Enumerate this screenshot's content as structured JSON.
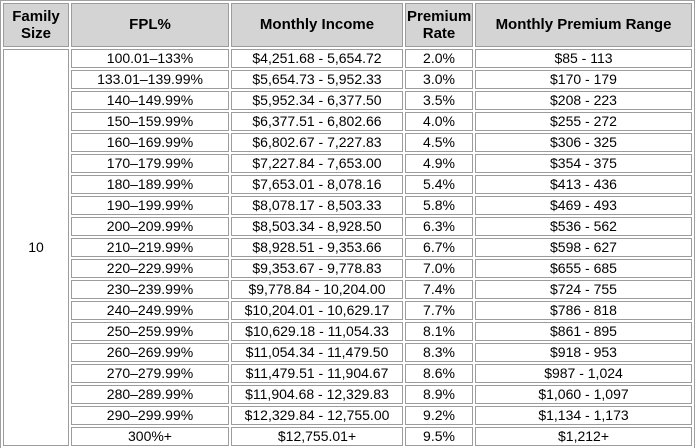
{
  "table": {
    "family_size": "10",
    "columns": {
      "family_size": "Family Size",
      "fpl": "FPL%",
      "income": "Monthly Income",
      "rate": "Premium Rate",
      "premium_range": "Monthly Premium Range"
    },
    "rows": [
      {
        "fpl": "100.01–133%",
        "income": "$4,251.68 - 5,654.72",
        "rate": "2.0%",
        "premium": "$85 - 113"
      },
      {
        "fpl": "133.01–139.99%",
        "income": "$5,654.73 - 5,952.33",
        "rate": "3.0%",
        "premium": "$170 - 179"
      },
      {
        "fpl": "140–149.99%",
        "income": "$5,952.34 - 6,377.50",
        "rate": "3.5%",
        "premium": "$208 - 223"
      },
      {
        "fpl": "150–159.99%",
        "income": "$6,377.51 - 6,802.66",
        "rate": "4.0%",
        "premium": "$255 - 272"
      },
      {
        "fpl": "160–169.99%",
        "income": "$6,802.67 - 7,227.83",
        "rate": "4.5%",
        "premium": "$306 - 325"
      },
      {
        "fpl": "170–179.99%",
        "income": "$7,227.84 - 7,653.00",
        "rate": "4.9%",
        "premium": "$354 - 375"
      },
      {
        "fpl": "180–189.99%",
        "income": "$7,653.01 - 8,078.16",
        "rate": "5.4%",
        "premium": "$413 - 436"
      },
      {
        "fpl": "190–199.99%",
        "income": "$8,078.17 - 8,503.33",
        "rate": "5.8%",
        "premium": "$469 - 493"
      },
      {
        "fpl": "200–209.99%",
        "income": "$8,503.34 - 8,928.50",
        "rate": "6.3%",
        "premium": "$536 - 562"
      },
      {
        "fpl": "210–219.99%",
        "income": "$8,928.51 - 9,353.66",
        "rate": "6.7%",
        "premium": "$598 - 627"
      },
      {
        "fpl": "220–229.99%",
        "income": "$9,353.67 - 9,778.83",
        "rate": "7.0%",
        "premium": "$655 - 685"
      },
      {
        "fpl": "230–239.99%",
        "income": "$9,778.84 - 10,204.00",
        "rate": "7.4%",
        "premium": "$724 - 755"
      },
      {
        "fpl": "240–249.99%",
        "income": "$10,204.01 - 10,629.17",
        "rate": "7.7%",
        "premium": "$786 - 818"
      },
      {
        "fpl": "250–259.99%",
        "income": "$10,629.18 - 11,054.33",
        "rate": "8.1%",
        "premium": "$861 - 895"
      },
      {
        "fpl": "260–269.99%",
        "income": "$11,054.34 - 11,479.50",
        "rate": "8.3%",
        "premium": "$918 - 953"
      },
      {
        "fpl": "270–279.99%",
        "income": "$11,479.51 - 11,904.67",
        "rate": "8.6%",
        "premium": "$987 - 1,024"
      },
      {
        "fpl": "280–289.99%",
        "income": "$11,904.68 - 12,329.83",
        "rate": "8.9%",
        "premium": "$1,060 - 1,097"
      },
      {
        "fpl": "290–299.99%",
        "income": "$12,329.84 - 12,755.00",
        "rate": "9.2%",
        "premium": "$1,134 - 1,173"
      },
      {
        "fpl": "300%+",
        "income": "$12,755.01+",
        "rate": "9.5%",
        "premium": "$1,212+"
      }
    ]
  },
  "colors": {
    "header_bg": "#d4d4d4",
    "border": "#9c9c9c",
    "text": "#000000",
    "background": "#ffffff"
  }
}
